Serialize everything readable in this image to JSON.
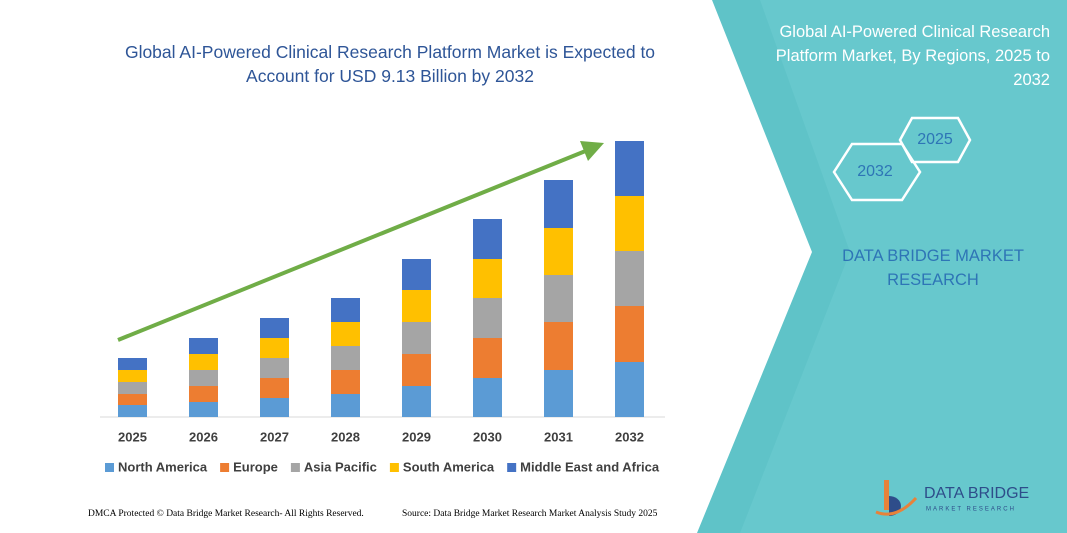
{
  "chart_data": {
    "type": "bar",
    "stacked": true,
    "title": "Global AI-Powered Clinical Research Platform Market is Expected to Account for USD 9.13 Billion by 2032",
    "categories": [
      "2025",
      "2026",
      "2027",
      "2028",
      "2029",
      "2030",
      "2031",
      "2032"
    ],
    "series": [
      {
        "name": "North America",
        "color": "#5b9bd5",
        "values": [
          12,
          15,
          19,
          23,
          31,
          39,
          47,
          55
        ]
      },
      {
        "name": "Europe",
        "color": "#ed7d31",
        "values": [
          11,
          16,
          20,
          24,
          32,
          40,
          48,
          56
        ]
      },
      {
        "name": "Asia Pacific",
        "color": "#a5a5a5",
        "values": [
          12,
          16,
          20,
          24,
          32,
          40,
          47,
          55
        ]
      },
      {
        "name": "South America",
        "color": "#ffc000",
        "values": [
          12,
          16,
          20,
          24,
          32,
          39,
          47,
          55
        ]
      },
      {
        "name": "Middle East and Africa",
        "color": "#4472c4",
        "values": [
          12,
          16,
          20,
          24,
          31,
          40,
          48,
          55
        ]
      }
    ],
    "legend": "bottom",
    "grid": false
  },
  "panel": {
    "title": "Global AI-Powered Clinical Research Platform Market, By Regions, 2025 to 2032",
    "hexagons": [
      "2025",
      "2032"
    ],
    "brand": "DATA BRIDGE MARKET RESEARCH"
  },
  "footer": {
    "left": "DMCA Protected © Data Bridge Market Research- All Rights Reserved.",
    "right": "Source: Data Bridge Market Research Market Analysis Study 2025"
  },
  "logo": {
    "name": "DATA BRIDGE",
    "tagline": "MARKET RESEARCH"
  }
}
